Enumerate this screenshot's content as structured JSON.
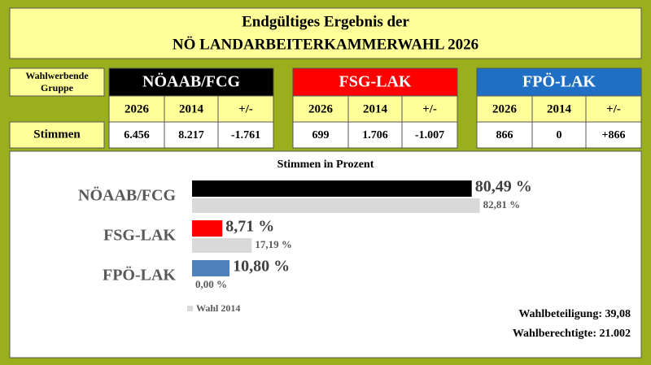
{
  "header": {
    "line1": "Endgültiges Ergebnis der",
    "line2": "NÖ LANDARBEITERKAMMERWAHL 2026"
  },
  "table": {
    "row_header": "Wahlwerbende Gruppe",
    "row_label": "Stimmen",
    "groups": [
      {
        "name": "NÖAAB/FCG",
        "color": "#000000",
        "columns": [
          "2026",
          "2014",
          "+/-"
        ],
        "values": [
          "6.456",
          "8.217",
          "-1.761"
        ]
      },
      {
        "name": "FSG-LAK",
        "color": "#ff0000",
        "columns": [
          "2026",
          "2014",
          "+/-"
        ],
        "values": [
          "699",
          "1.706",
          "-1.007"
        ]
      },
      {
        "name": "FPÖ-LAK",
        "color": "#1f6fc5",
        "columns": [
          "2026",
          "2014",
          "+/-"
        ],
        "values": [
          "866",
          "0",
          "+866"
        ]
      }
    ]
  },
  "chart_data": {
    "type": "bar",
    "orientation": "horizontal",
    "title": "Stimmen in Prozent",
    "categories": [
      "NÖAAB/FCG",
      "FSG-LAK",
      "FPÖ-LAK"
    ],
    "series": [
      {
        "colors": [
          "#000000",
          "#ff0000",
          "#4f81bd"
        ],
        "values": [
          80.49,
          8.71,
          10.8
        ],
        "value_labels": [
          "80,49 %",
          "8,71 %",
          "10,80 %"
        ]
      },
      {
        "name": "Wahl 2014",
        "color": "#d9d9d9",
        "values": [
          82.81,
          17.19,
          0
        ],
        "value_labels": [
          "82,81 %",
          "17,19 %",
          "0,00 %"
        ]
      }
    ]
  },
  "footer": {
    "turnout": "Wahlbeteiligung: 39,08",
    "eligible": "Wahlberechtigte: 21.002"
  }
}
